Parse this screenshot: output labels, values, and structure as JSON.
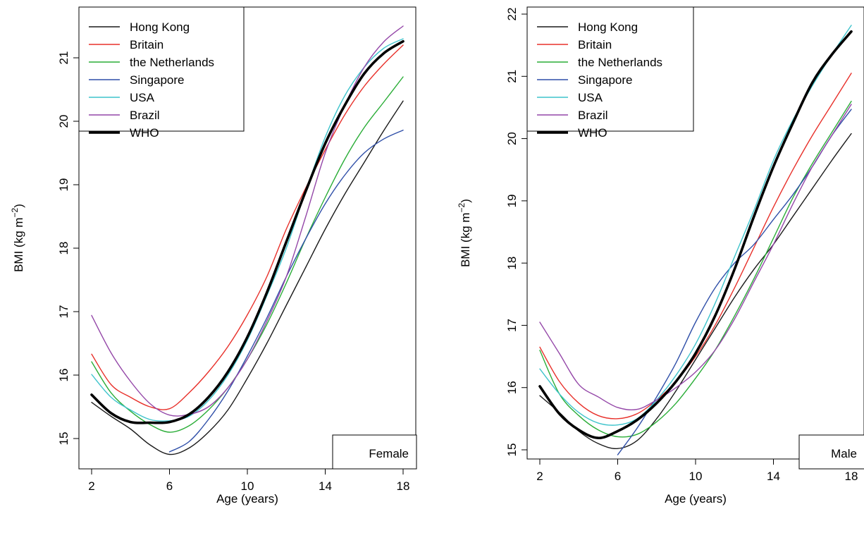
{
  "chart_data": [
    {
      "type": "line",
      "panel_label": "Female",
      "xlabel": "Age (years)",
      "ylabel_main": "BMI (kg m",
      "ylabel_sup": "−2",
      "ylabel_close": ")",
      "xlim": [
        2,
        18
      ],
      "ylim": [
        14.6,
        21.7
      ],
      "xticks": [
        2,
        6,
        10,
        14,
        18
      ],
      "yticks": [
        15,
        16,
        17,
        18,
        19,
        20,
        21
      ],
      "legend": {
        "placement": "top-left"
      },
      "series": [
        {
          "name": "Hong Kong",
          "color": "#1a1a1a",
          "width": 1.4,
          "points": [
            [
              2,
              15.57
            ],
            [
              3,
              15.35
            ],
            [
              4,
              15.15
            ],
            [
              5,
              14.9
            ],
            [
              6,
              14.75
            ],
            [
              7,
              14.85
            ],
            [
              8,
              15.1
            ],
            [
              9,
              15.45
            ],
            [
              10,
              15.95
            ],
            [
              11,
              16.5
            ],
            [
              12,
              17.1
            ],
            [
              13,
              17.7
            ],
            [
              14,
              18.3
            ],
            [
              15,
              18.85
            ],
            [
              16,
              19.35
            ],
            [
              17,
              19.85
            ],
            [
              18,
              20.32
            ]
          ]
        },
        {
          "name": "Britain",
          "color": "#e8302a",
          "width": 1.4,
          "points": [
            [
              2,
              16.33
            ],
            [
              3,
              15.85
            ],
            [
              4,
              15.65
            ],
            [
              5,
              15.5
            ],
            [
              6,
              15.47
            ],
            [
              7,
              15.72
            ],
            [
              8,
              16.05
            ],
            [
              9,
              16.45
            ],
            [
              10,
              16.95
            ],
            [
              11,
              17.55
            ],
            [
              12,
              18.3
            ],
            [
              13,
              18.95
            ],
            [
              14,
              19.55
            ],
            [
              15,
              20.1
            ],
            [
              16,
              20.55
            ],
            [
              17,
              20.9
            ],
            [
              18,
              21.2
            ]
          ]
        },
        {
          "name": "the Netherlands",
          "color": "#2aad37",
          "width": 1.4,
          "points": [
            [
              2,
              16.21
            ],
            [
              3,
              15.72
            ],
            [
              4,
              15.43
            ],
            [
              5,
              15.22
            ],
            [
              6,
              15.1
            ],
            [
              7,
              15.2
            ],
            [
              8,
              15.45
            ],
            [
              9,
              15.8
            ],
            [
              10,
              16.25
            ],
            [
              11,
              16.8
            ],
            [
              12,
              17.45
            ],
            [
              13,
              18.15
            ],
            [
              14,
              18.8
            ],
            [
              15,
              19.4
            ],
            [
              16,
              19.9
            ],
            [
              17,
              20.3
            ],
            [
              18,
              20.7
            ]
          ]
        },
        {
          "name": "Singapore",
          "color": "#2f4fa8",
          "width": 1.4,
          "points": [
            [
              6,
              14.79
            ],
            [
              7,
              14.95
            ],
            [
              8,
              15.3
            ],
            [
              9,
              15.75
            ],
            [
              10,
              16.3
            ],
            [
              11,
              16.9
            ],
            [
              12,
              17.55
            ],
            [
              13,
              18.15
            ],
            [
              14,
              18.7
            ],
            [
              15,
              19.15
            ],
            [
              16,
              19.5
            ],
            [
              17,
              19.72
            ],
            [
              18,
              19.86
            ]
          ]
        },
        {
          "name": "USA",
          "color": "#3fc4cc",
          "width": 1.4,
          "points": [
            [
              2,
              16.01
            ],
            [
              3,
              15.65
            ],
            [
              4,
              15.45
            ],
            [
              5,
              15.3
            ],
            [
              6,
              15.28
            ],
            [
              7,
              15.35
            ],
            [
              8,
              15.6
            ],
            [
              9,
              16.0
            ],
            [
              10,
              16.55
            ],
            [
              11,
              17.25
            ],
            [
              12,
              18.0
            ],
            [
              13,
              18.9
            ],
            [
              14,
              19.75
            ],
            [
              15,
              20.4
            ],
            [
              16,
              20.85
            ],
            [
              17,
              21.15
            ],
            [
              18,
              21.3
            ]
          ]
        },
        {
          "name": "Brazil",
          "color": "#9447a8",
          "width": 1.4,
          "points": [
            [
              2,
              16.94
            ],
            [
              3,
              16.35
            ],
            [
              4,
              15.9
            ],
            [
              5,
              15.55
            ],
            [
              6,
              15.37
            ],
            [
              7,
              15.38
            ],
            [
              8,
              15.5
            ],
            [
              9,
              15.8
            ],
            [
              10,
              16.25
            ],
            [
              11,
              16.85
            ],
            [
              12,
              17.55
            ],
            [
              13,
              18.5
            ],
            [
              14,
              19.5
            ],
            [
              15,
              20.25
            ],
            [
              16,
              20.85
            ],
            [
              17,
              21.25
            ],
            [
              18,
              21.5
            ]
          ]
        },
        {
          "name": "WHO",
          "color": "#000000",
          "width": 3.6,
          "points": [
            [
              2,
              15.69
            ],
            [
              3,
              15.4
            ],
            [
              4,
              15.26
            ],
            [
              5,
              15.25
            ],
            [
              6,
              15.26
            ],
            [
              7,
              15.38
            ],
            [
              8,
              15.65
            ],
            [
              9,
              16.05
            ],
            [
              10,
              16.6
            ],
            [
              11,
              17.3
            ],
            [
              12,
              18.1
            ],
            [
              13,
              18.9
            ],
            [
              14,
              19.65
            ],
            [
              15,
              20.25
            ],
            [
              16,
              20.75
            ],
            [
              17,
              21.07
            ],
            [
              18,
              21.26
            ]
          ]
        }
      ]
    },
    {
      "type": "line",
      "panel_label": "Male",
      "xlabel": "Age (years)",
      "ylabel_main": "BMI (kg m",
      "ylabel_sup": "−2",
      "ylabel_close": ")",
      "xlim": [
        2,
        18
      ],
      "ylim": [
        14.6,
        22.1
      ],
      "xticks": [
        2,
        6,
        10,
        14,
        18
      ],
      "yticks": [
        15,
        16,
        17,
        18,
        19,
        20,
        21,
        22
      ],
      "legend": {
        "placement": "top-left"
      },
      "series": [
        {
          "name": "Hong Kong",
          "color": "#1a1a1a",
          "width": 1.4,
          "points": [
            [
              2,
              15.87
            ],
            [
              3,
              15.6
            ],
            [
              4,
              15.3
            ],
            [
              5,
              15.1
            ],
            [
              6,
              15.02
            ],
            [
              7,
              15.15
            ],
            [
              8,
              15.5
            ],
            [
              9,
              15.95
            ],
            [
              10,
              16.45
            ],
            [
              11,
              16.95
            ],
            [
              12,
              17.45
            ],
            [
              13,
              17.9
            ],
            [
              14,
              18.3
            ],
            [
              15,
              18.75
            ],
            [
              16,
              19.2
            ],
            [
              17,
              19.65
            ],
            [
              18,
              20.08
            ]
          ]
        },
        {
          "name": "Britain",
          "color": "#e8302a",
          "width": 1.4,
          "points": [
            [
              2,
              16.65
            ],
            [
              3,
              16.1
            ],
            [
              4,
              15.75
            ],
            [
              5,
              15.55
            ],
            [
              6,
              15.5
            ],
            [
              7,
              15.58
            ],
            [
              8,
              15.8
            ],
            [
              9,
              16.1
            ],
            [
              10,
              16.5
            ],
            [
              11,
              17.0
            ],
            [
              12,
              17.6
            ],
            [
              13,
              18.25
            ],
            [
              14,
              18.9
            ],
            [
              15,
              19.5
            ],
            [
              16,
              20.05
            ],
            [
              17,
              20.55
            ],
            [
              18,
              21.05
            ]
          ]
        },
        {
          "name": "the Netherlands",
          "color": "#2aad37",
          "width": 1.4,
          "points": [
            [
              2,
              16.6
            ],
            [
              3,
              15.9
            ],
            [
              4,
              15.55
            ],
            [
              5,
              15.32
            ],
            [
              6,
              15.21
            ],
            [
              7,
              15.25
            ],
            [
              8,
              15.45
            ],
            [
              9,
              15.75
            ],
            [
              10,
              16.15
            ],
            [
              11,
              16.6
            ],
            [
              12,
              17.15
            ],
            [
              13,
              17.75
            ],
            [
              14,
              18.4
            ],
            [
              15,
              19.05
            ],
            [
              16,
              19.6
            ],
            [
              17,
              20.1
            ],
            [
              18,
              20.6
            ]
          ]
        },
        {
          "name": "Singapore",
          "color": "#2f4fa8",
          "width": 1.4,
          "points": [
            [
              6,
              14.92
            ],
            [
              7,
              15.35
            ],
            [
              8,
              15.85
            ],
            [
              9,
              16.4
            ],
            [
              10,
              17.05
            ],
            [
              11,
              17.6
            ],
            [
              12,
              18.0
            ],
            [
              13,
              18.3
            ],
            [
              14,
              18.7
            ],
            [
              15,
              19.1
            ],
            [
              16,
              19.55
            ],
            [
              17,
              20.05
            ],
            [
              18,
              20.47
            ]
          ]
        },
        {
          "name": "USA",
          "color": "#3fc4cc",
          "width": 1.4,
          "points": [
            [
              2,
              16.3
            ],
            [
              3,
              15.9
            ],
            [
              4,
              15.6
            ],
            [
              5,
              15.43
            ],
            [
              6,
              15.4
            ],
            [
              7,
              15.5
            ],
            [
              8,
              15.8
            ],
            [
              9,
              16.2
            ],
            [
              10,
              16.7
            ],
            [
              11,
              17.35
            ],
            [
              12,
              18.1
            ],
            [
              13,
              18.85
            ],
            [
              14,
              19.65
            ],
            [
              15,
              20.3
            ],
            [
              16,
              20.85
            ],
            [
              17,
              21.35
            ],
            [
              18,
              21.82
            ]
          ]
        },
        {
          "name": "Brazil",
          "color": "#9447a8",
          "width": 1.4,
          "points": [
            [
              2,
              17.05
            ],
            [
              3,
              16.55
            ],
            [
              4,
              16.05
            ],
            [
              5,
              15.85
            ],
            [
              6,
              15.68
            ],
            [
              7,
              15.65
            ],
            [
              8,
              15.8
            ],
            [
              9,
              16.0
            ],
            [
              10,
              16.25
            ],
            [
              11,
              16.6
            ],
            [
              12,
              17.1
            ],
            [
              13,
              17.7
            ],
            [
              14,
              18.3
            ],
            [
              15,
              18.95
            ],
            [
              16,
              19.55
            ],
            [
              17,
              20.05
            ],
            [
              18,
              20.55
            ]
          ]
        },
        {
          "name": "WHO",
          "color": "#000000",
          "width": 3.6,
          "points": [
            [
              2,
              16.02
            ],
            [
              3,
              15.58
            ],
            [
              4,
              15.32
            ],
            [
              5,
              15.19
            ],
            [
              6,
              15.3
            ],
            [
              7,
              15.48
            ],
            [
              8,
              15.75
            ],
            [
              9,
              16.1
            ],
            [
              10,
              16.55
            ],
            [
              11,
              17.15
            ],
            [
              12,
              17.9
            ],
            [
              13,
              18.75
            ],
            [
              14,
              19.55
            ],
            [
              15,
              20.25
            ],
            [
              16,
              20.9
            ],
            [
              17,
              21.35
            ],
            [
              18,
              21.72
            ]
          ]
        }
      ]
    }
  ]
}
